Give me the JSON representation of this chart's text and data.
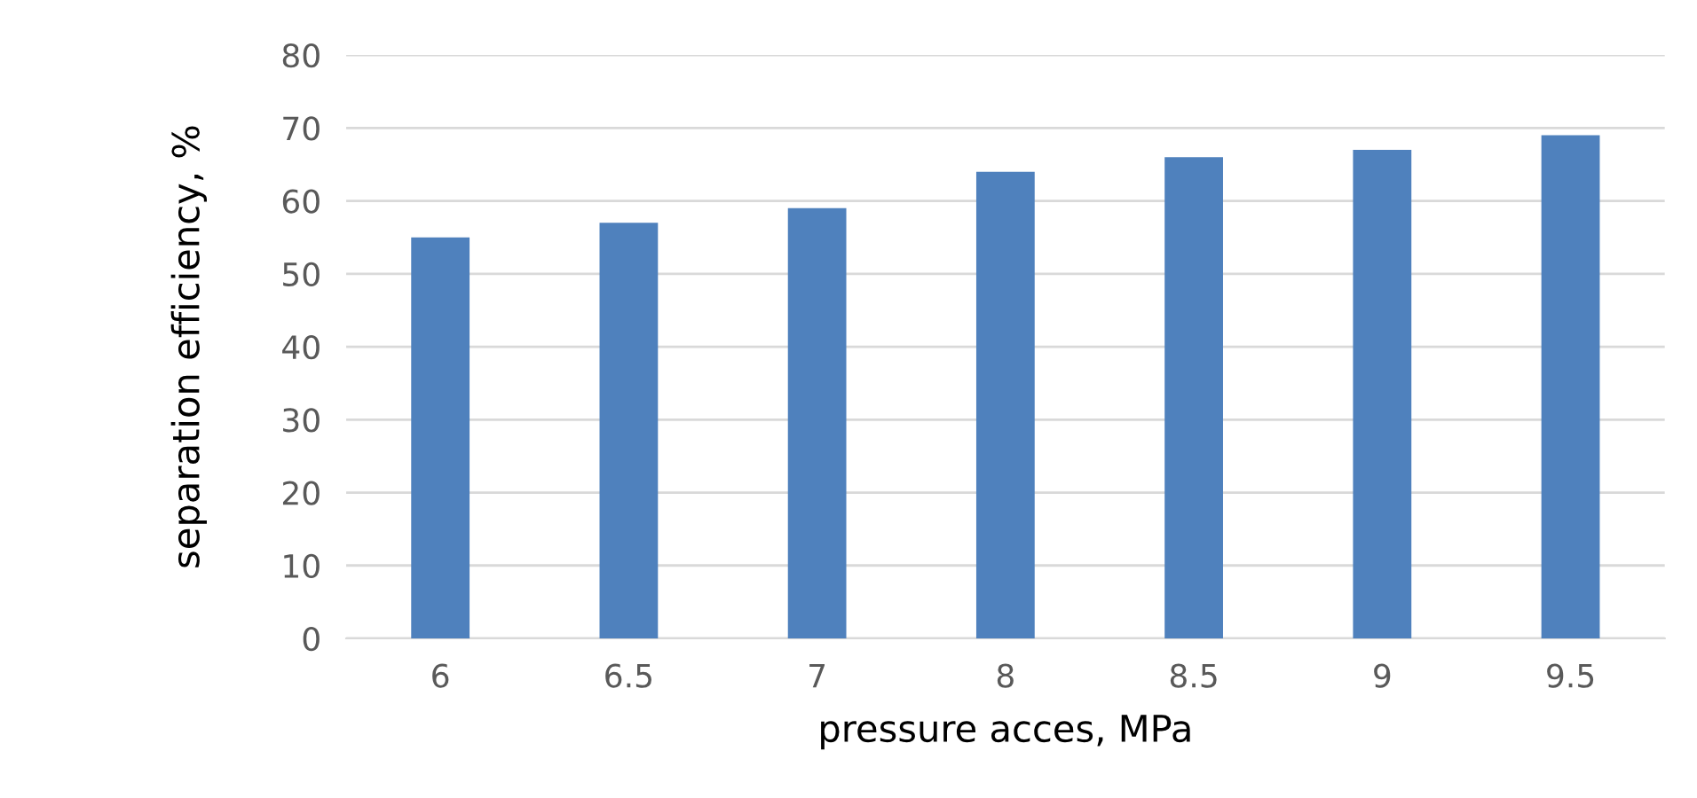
{
  "chart_data": {
    "type": "bar",
    "xlabel": "pressure acces, MPa",
    "ylabel": "separation efficiency, %",
    "categories": [
      "6",
      "6.5",
      "7",
      "8",
      "8.5",
      "9",
      "9.5"
    ],
    "values": [
      55,
      57,
      59,
      64,
      66,
      67,
      69
    ],
    "color": "#4f81bd",
    "ylim": [
      0,
      80
    ],
    "yticks": [
      0,
      10,
      20,
      30,
      40,
      50,
      60,
      70,
      80
    ],
    "grid": "y",
    "legend": false
  }
}
